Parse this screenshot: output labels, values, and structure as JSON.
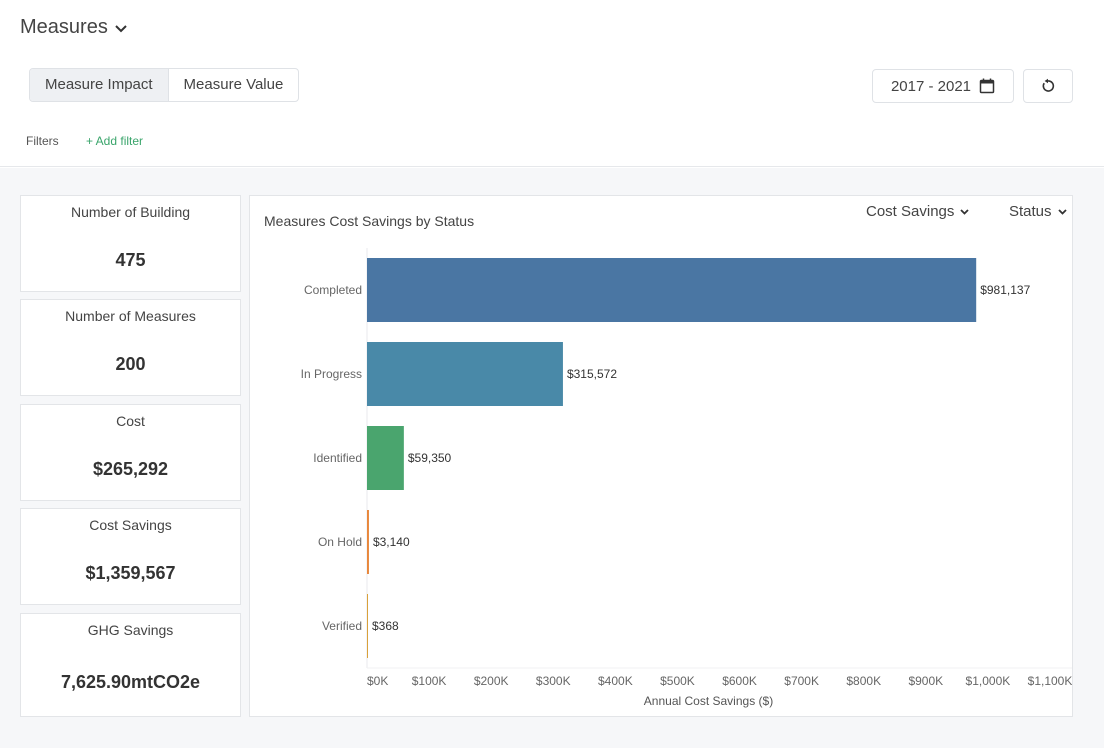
{
  "header": {
    "title": "Measures"
  },
  "view_toggle": {
    "options": [
      "Measure Impact",
      "Measure Value"
    ],
    "active": 0
  },
  "date_range": {
    "label": "2017 - 2021"
  },
  "filters": {
    "label": "Filters",
    "add_label": "+ Add filter"
  },
  "summary_cards": [
    {
      "label": "Number of Building",
      "value": "475"
    },
    {
      "label": "Number of Measures",
      "value": "200"
    },
    {
      "label": "Cost",
      "value": "$265,292"
    },
    {
      "label": "Cost Savings",
      "value": "$1,359,567"
    },
    {
      "label": "GHG Savings",
      "value": "7,625.90mtCO2e"
    }
  ],
  "chart_panel": {
    "metric_dropdown": "Cost Savings",
    "group_dropdown": "Status"
  },
  "chart_data": {
    "type": "bar",
    "orientation": "horizontal",
    "title": "Measures Cost Savings by Status",
    "xlabel": "Annual Cost Savings ($)",
    "ylabel": "",
    "categories": [
      "Completed",
      "In Progress",
      "Identified",
      "On Hold",
      "Verified"
    ],
    "values": [
      981137,
      315572,
      59350,
      3140,
      368
    ],
    "data_labels": [
      "$981,137",
      "$315,572",
      "$59,350",
      "$3,140",
      "$368"
    ],
    "colors": [
      "#4a76a3",
      "#4989a8",
      "#4aa56e",
      "#e8873a",
      "#d9a13a"
    ],
    "xlim": [
      0,
      1100000
    ],
    "xticks": [
      0,
      100000,
      200000,
      300000,
      400000,
      500000,
      600000,
      700000,
      800000,
      900000,
      1000000,
      1100000
    ],
    "xtick_labels": [
      "$0K",
      "$100K",
      "$200K",
      "$300K",
      "$400K",
      "$500K",
      "$600K",
      "$700K",
      "$800K",
      "$900K",
      "$1,000K",
      "$1,100K"
    ],
    "grid": false,
    "legend": "none"
  }
}
